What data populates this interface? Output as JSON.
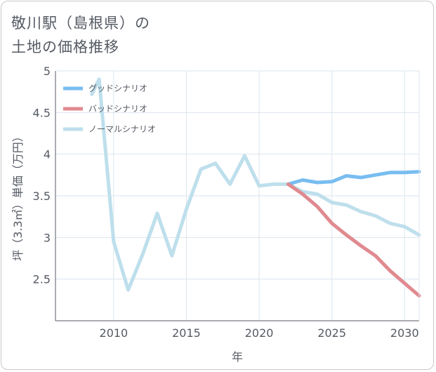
{
  "title": {
    "line1": "敬川駅（島根県）の",
    "line2": "土地の価格推移"
  },
  "colors": {
    "good": "#78bdf0",
    "bad": "#e08a90",
    "normal": "#bedfec",
    "grid": "#dbe6ee",
    "frame": "#555a63"
  },
  "chart_data": {
    "type": "line",
    "xlabel": "年",
    "ylabel": "坪（3.3㎡）単価（万円）",
    "xlim": [
      2006,
      2031
    ],
    "ylim": [
      2,
      5
    ],
    "x_ticks": [
      2010,
      2015,
      2020,
      2025,
      2030
    ],
    "y_ticks": [
      2.5,
      3,
      3.5,
      4,
      4.5,
      5
    ],
    "x_tick_labels": [
      "2010",
      "2015",
      "2020",
      "2025",
      "2030"
    ],
    "y_tick_labels": [
      "2.5",
      "3",
      "3.5",
      "4",
      "4.5",
      "5"
    ],
    "legend": [
      "グッドシナリオ",
      "バッドシナリオ",
      "ノーマルシナリオ"
    ],
    "series": [
      {
        "name": "グッドシナリオ",
        "color_key": "good",
        "x": [
          2022,
          2023,
          2024,
          2025,
          2026,
          2027,
          2028,
          2029,
          2030,
          2031
        ],
        "y": [
          3.64,
          3.69,
          3.66,
          3.67,
          3.74,
          3.72,
          3.75,
          3.78,
          3.78,
          3.79
        ]
      },
      {
        "name": "バッドシナリオ",
        "color_key": "bad",
        "x": [
          2022,
          2023,
          2024,
          2025,
          2026,
          2027,
          2028,
          2029,
          2030,
          2031
        ],
        "y": [
          3.64,
          3.52,
          3.37,
          3.17,
          3.03,
          2.9,
          2.78,
          2.6,
          2.45,
          2.3
        ]
      },
      {
        "name": "ノーマルシナリオ",
        "color_key": "normal",
        "x": [
          2008.5,
          2009,
          2010,
          2011,
          2012,
          2013,
          2014,
          2015,
          2016,
          2017,
          2018,
          2019,
          2020,
          2021,
          2022,
          2023,
          2024,
          2025,
          2026,
          2027,
          2028,
          2029,
          2030,
          2031
        ],
        "y": [
          4.72,
          4.9,
          2.95,
          2.37,
          2.8,
          3.29,
          2.78,
          3.34,
          3.82,
          3.89,
          3.64,
          3.98,
          3.62,
          3.64,
          3.64,
          3.55,
          3.52,
          3.42,
          3.39,
          3.31,
          3.26,
          3.17,
          3.13,
          3.03
        ]
      }
    ]
  }
}
